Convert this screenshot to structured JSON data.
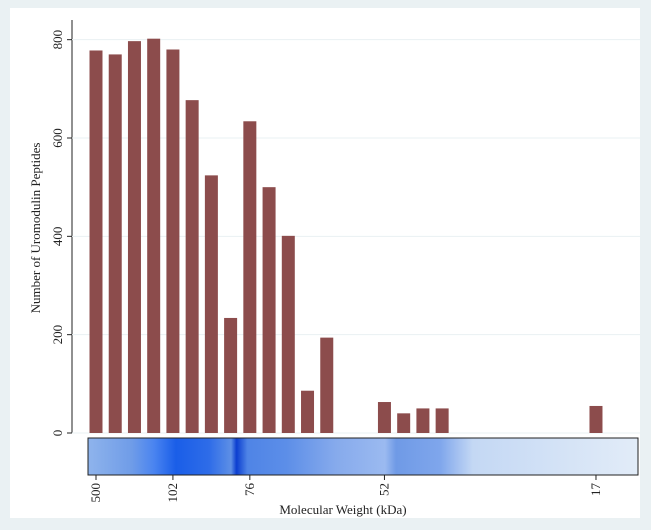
{
  "chart_data": {
    "type": "bar",
    "y_label": "Number of Uromodulin Peptides",
    "x_label": "Molecular Weight (kDa)",
    "categories": [
      "500",
      null,
      null,
      null,
      "102",
      null,
      null,
      null,
      "76",
      null,
      null,
      null,
      null,
      null,
      null,
      "52",
      null,
      null,
      null,
      null,
      null,
      null,
      null,
      null,
      null,
      null,
      "17"
    ],
    "values": [
      778,
      770,
      797,
      802,
      780,
      677,
      524,
      234,
      634,
      500,
      401,
      86,
      194,
      null,
      null,
      63,
      40,
      50,
      50,
      null,
      null,
      null,
      null,
      null,
      null,
      null,
      55
    ],
    "color": "#8c4c4c",
    "ylim": [
      0,
      840
    ],
    "yticks": [
      0,
      200,
      400,
      600,
      800
    ],
    "grid": true
  }
}
